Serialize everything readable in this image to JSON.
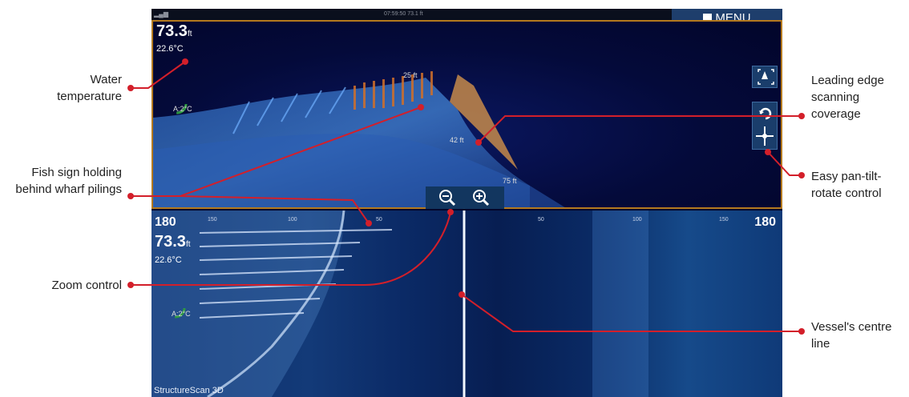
{
  "screen": {
    "status_clock": "07:59:50   73.1 ft",
    "menu_label": "MENU",
    "top_pane": {
      "depth": "73.3",
      "depth_unit": "ft",
      "temperature": "22.6°C",
      "range_labels": [
        "25 ft",
        "42 ft",
        "75 ft"
      ]
    },
    "bottom_pane": {
      "range_left": "180",
      "range_right": "180",
      "tick_labels_left": [
        "150",
        "100",
        "50"
      ],
      "tick_labels_right": [
        "50",
        "100",
        "150"
      ],
      "depth": "73.3",
      "depth_unit": "ft",
      "temperature": "22.6°C"
    },
    "brand": "StructureScan 3D"
  },
  "callouts": {
    "water_temperature": "Water temperature",
    "fish_sign": "Fish sign holding behind wharf pilings",
    "zoom_control": "Zoom control",
    "leading_edge": "Leading edge scanning coverage",
    "pan_tilt": "Easy pan-tilt-rotate control",
    "centre_line": "Vessel's centre line"
  },
  "colors": {
    "callout_line": "#d31f2a",
    "pane_border": "#b4791e",
    "menu_bg": "#1e3e6c"
  }
}
